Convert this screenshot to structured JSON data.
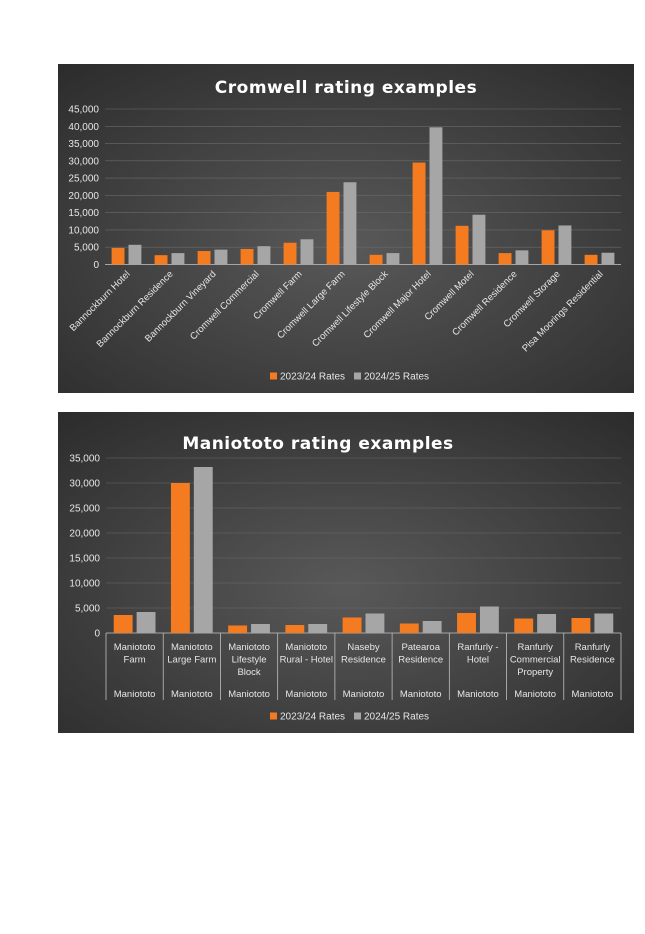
{
  "colors": {
    "series_2023": "#f47b20",
    "series_2024": "#a6a6a6",
    "panel_bg": "#404040"
  },
  "chart_data": [
    {
      "type": "bar",
      "title": "Cromwell rating examples",
      "categories": [
        "Bannockburn Hotel",
        "Bannockburn Residence",
        "Bannockburn Vineyard",
        "Cromwell Commercial",
        "Cromwell Farm",
        "Cromwell Large Farm",
        "Cromwell Lifestyle Block",
        "Cromwell Major Hotel",
        "Cromwell Motel",
        "Cromwell Residence",
        "Cromwell Storage",
        "Pisa Moorings Residential"
      ],
      "series": [
        {
          "name": "2023/24 Rates",
          "values": [
            4800,
            2700,
            3900,
            4500,
            6300,
            21000,
            2800,
            29500,
            11200,
            3300,
            9900,
            2800
          ]
        },
        {
          "name": "2024/25 Rates",
          "values": [
            5700,
            3300,
            4300,
            5300,
            7300,
            23800,
            3300,
            39700,
            14400,
            4100,
            11300,
            3400
          ]
        }
      ],
      "ylim": [
        0,
        45000
      ],
      "yticks": [
        "0",
        "5,000",
        "10,000",
        "15,000",
        "20,000",
        "25,000",
        "30,000",
        "35,000",
        "40,000",
        "45,000"
      ],
      "grid": true,
      "legend": "bottom"
    },
    {
      "type": "bar",
      "title": "Maniototo rating examples",
      "categories": [
        {
          "lines": [
            "Maniototo",
            "Farm"
          ],
          "group": "Maniototo"
        },
        {
          "lines": [
            "Maniototo",
            "Large Farm"
          ],
          "group": "Maniototo"
        },
        {
          "lines": [
            "Maniototo",
            "Lifestyle",
            "Block"
          ],
          "group": "Maniototo"
        },
        {
          "lines": [
            "Maniototo",
            "Rural - Hotel"
          ],
          "group": "Maniototo"
        },
        {
          "lines": [
            "Naseby",
            "Residence"
          ],
          "group": "Maniototo"
        },
        {
          "lines": [
            "Patearoa",
            "Residence"
          ],
          "group": "Maniototo"
        },
        {
          "lines": [
            "Ranfurly  -",
            "Hotel"
          ],
          "group": "Maniototo"
        },
        {
          "lines": [
            "Ranfurly",
            "Commercial",
            "Property"
          ],
          "group": "Maniototo"
        },
        {
          "lines": [
            "Ranfurly",
            "Residence"
          ],
          "group": "Maniototo"
        }
      ],
      "series": [
        {
          "name": "2023/24 Rates",
          "values": [
            3600,
            30000,
            1500,
            1600,
            3100,
            1900,
            4000,
            2900,
            3000
          ]
        },
        {
          "name": "2024/25 Rates",
          "values": [
            4200,
            33200,
            1800,
            1800,
            3900,
            2400,
            5300,
            3800,
            3900
          ]
        }
      ],
      "ylim": [
        0,
        35000
      ],
      "yticks": [
        "0",
        "5,000",
        "10,000",
        "15,000",
        "20,000",
        "25,000",
        "30,000",
        "35,000"
      ],
      "grid": true,
      "legend": "bottom"
    }
  ]
}
